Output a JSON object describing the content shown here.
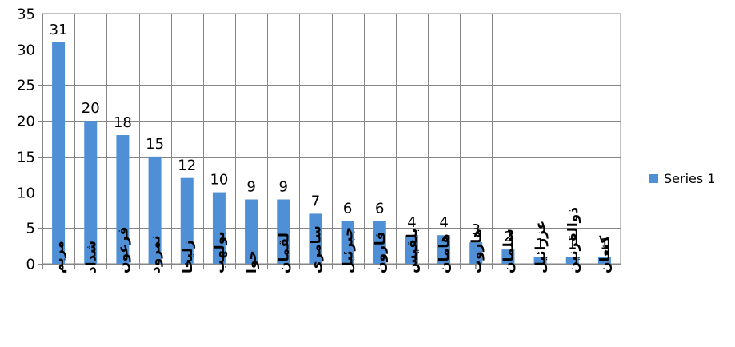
{
  "chart_data": {
    "type": "bar",
    "categories": [
      "مریم",
      "شداد",
      "فرعون",
      "نمرود",
      "زلیخا",
      "بولهب",
      "حوا",
      "لقمان",
      "سامری",
      "جبرئیل",
      "قارون",
      "بلقیس",
      "هامان",
      "هاروت",
      "سلمان",
      "عزرائیل",
      "ذوالقرنین",
      "کنعان"
    ],
    "series": [
      {
        "name": "Series 1",
        "values": [
          31,
          20,
          18,
          15,
          12,
          10,
          9,
          9,
          7,
          6,
          6,
          4,
          4,
          3,
          2,
          1,
          1,
          1
        ],
        "color": "#4f8fd5"
      }
    ],
    "ylim": [
      0,
      35
    ],
    "yticks": [
      0,
      5,
      10,
      15,
      20,
      25,
      30,
      35
    ],
    "grid": true,
    "data_labels": true,
    "legend": "right",
    "title": "",
    "xlabel": "",
    "ylabel": ""
  }
}
